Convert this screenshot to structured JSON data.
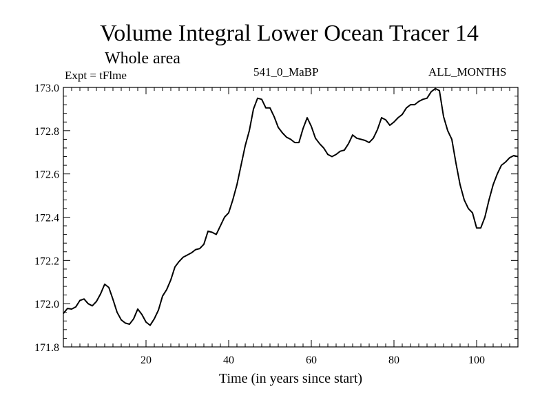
{
  "chart_data": {
    "type": "line",
    "title": "Volume Integral Lower Ocean Tracer 14",
    "subtitle": "Whole area",
    "left_label": "Expt = tFlme",
    "center_label": "541_0_MaBP",
    "right_label": "ALL_MONTHS",
    "xlabel": "Time (in years since start)",
    "ylabel": "",
    "xlim": [
      0,
      110
    ],
    "ylim": [
      171.8,
      173.0
    ],
    "xticks": [
      20,
      40,
      60,
      80,
      100
    ],
    "xtick_labels": [
      "20",
      "40",
      "60",
      "80",
      "100"
    ],
    "yticks": [
      171.8,
      172.0,
      172.2,
      172.4,
      172.6,
      172.8,
      173.0
    ],
    "ytick_labels": [
      "171.8",
      "172.0",
      "172.2",
      "172.4",
      "172.6",
      "172.8",
      "173.0"
    ],
    "grid": false,
    "series": [
      {
        "name": "Tracer 14",
        "x": [
          0,
          1,
          2,
          3,
          4,
          5,
          6,
          7,
          8,
          9,
          10,
          11,
          12,
          13,
          14,
          15,
          16,
          17,
          18,
          19,
          20,
          21,
          22,
          23,
          24,
          25,
          26,
          27,
          28,
          29,
          30,
          31,
          32,
          33,
          34,
          35,
          36,
          37,
          38,
          39,
          40,
          41,
          42,
          43,
          44,
          45,
          46,
          47,
          48,
          49,
          50,
          51,
          52,
          53,
          54,
          55,
          56,
          57,
          58,
          59,
          60,
          61,
          62,
          63,
          64,
          65,
          66,
          67,
          68,
          69,
          70,
          71,
          72,
          73,
          74,
          75,
          76,
          77,
          78,
          79,
          80,
          81,
          82,
          83,
          84,
          85,
          86,
          87,
          88,
          89,
          90,
          91,
          92,
          93,
          94,
          95,
          96,
          97,
          98,
          99,
          100,
          101,
          102,
          103,
          104,
          105,
          106,
          107,
          108,
          109,
          110
        ],
        "y": [
          171.955,
          171.978,
          171.975,
          171.985,
          172.015,
          172.022,
          172.0,
          171.99,
          172.01,
          172.045,
          172.09,
          172.075,
          172.02,
          171.96,
          171.925,
          171.91,
          171.905,
          171.93,
          171.975,
          171.95,
          171.915,
          171.9,
          171.93,
          171.97,
          172.035,
          172.065,
          172.11,
          172.17,
          172.195,
          172.215,
          172.225,
          172.235,
          172.25,
          172.255,
          172.275,
          172.335,
          172.33,
          172.32,
          172.36,
          172.4,
          172.42,
          172.48,
          172.55,
          172.64,
          172.73,
          172.8,
          172.9,
          172.95,
          172.945,
          172.905,
          172.905,
          172.865,
          172.815,
          172.79,
          172.77,
          172.76,
          172.745,
          172.745,
          172.81,
          172.86,
          172.82,
          172.765,
          172.74,
          172.72,
          172.69,
          172.68,
          172.69,
          172.705,
          172.71,
          172.74,
          172.78,
          172.765,
          172.76,
          172.755,
          172.745,
          172.765,
          172.805,
          172.86,
          172.85,
          172.825,
          172.84,
          172.86,
          172.875,
          172.905,
          172.92,
          172.92,
          172.935,
          172.945,
          172.95,
          172.98,
          172.995,
          172.985,
          172.865,
          172.8,
          172.76,
          172.65,
          172.55,
          172.48,
          172.44,
          172.42,
          172.35,
          172.35,
          172.4,
          172.48,
          172.55,
          172.6,
          172.64,
          172.655,
          172.675,
          172.685,
          172.68
        ]
      }
    ]
  }
}
